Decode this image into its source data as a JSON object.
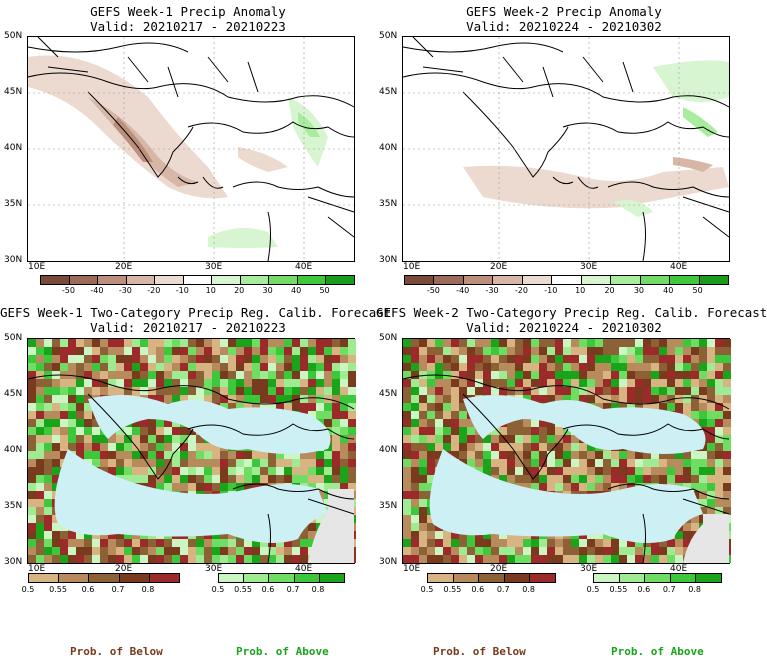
{
  "panels": [
    {
      "title": "GEFS Week-1 Precip Anomaly",
      "valid": "Valid: 20210217 - 20210223"
    },
    {
      "title": "GEFS Week-2 Precip Anomaly",
      "valid": "Valid: 20210224 - 20210302"
    },
    {
      "title": "GEFS Week-1 Two-Category Precip Reg. Calib. Forecast",
      "valid": "Valid: 20210217 - 20210223"
    },
    {
      "title": "GEFS Week-2 Two-Category Precip Reg. Calib. Forecast",
      "valid": "Valid: 20210224 - 20210302"
    }
  ],
  "lat_ticks": [
    "50N",
    "45N",
    "40N",
    "35N",
    "30N"
  ],
  "lon_ticks": [
    "10E",
    "20E",
    "30E",
    "40E"
  ],
  "anomaly_scale": {
    "labels": [
      "-50",
      "-40",
      "-30",
      "-20",
      "-10",
      "10",
      "20",
      "30",
      "40",
      "50"
    ],
    "colors": [
      "#7a4a3a",
      "#9b6a58",
      "#bb8f7c",
      "#d8b6a6",
      "#ecd9cf",
      "#ffffff",
      "#d6f5d0",
      "#a8ec9e",
      "#72dc66",
      "#3fc83a",
      "#1a9b1a"
    ]
  },
  "prob_below_scale": {
    "labels": [
      "0.5",
      "0.55",
      "0.6",
      "0.7",
      "0.8"
    ],
    "colors": [
      "#d8b483",
      "#b88b5c",
      "#8c6136",
      "#7a3a1e",
      "#9c2a2a"
    ]
  },
  "prob_above_scale": {
    "labels": [
      "0.5",
      "0.55",
      "0.6",
      "0.7",
      "0.8"
    ],
    "colors": [
      "#ccf5c4",
      "#9eeb92",
      "#6fdc62",
      "#3cc83a",
      "#1aa41a"
    ]
  },
  "captions": {
    "below": "Prob. of Below",
    "above": "Prob. of Above"
  },
  "colors": {
    "sea": "#cdf0f5",
    "land_gray": "#e6e6e6",
    "below_text": "#7a3a1e",
    "above_text": "#1aa41a"
  }
}
